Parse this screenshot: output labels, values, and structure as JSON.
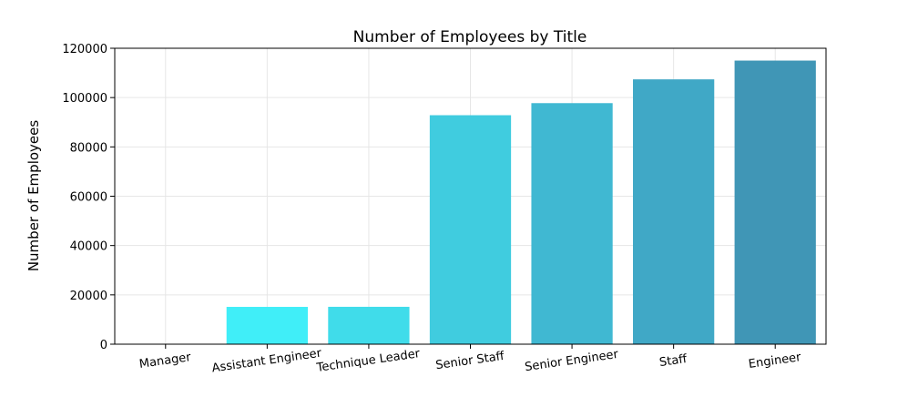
{
  "chart_data": {
    "type": "bar",
    "title": "Number of Employees by Title",
    "xlabel": "",
    "ylabel": "Number of Employees",
    "categories": [
      "Manager",
      "Assistant Engineer",
      "Technique Leader",
      "Senior Staff",
      "Senior Engineer",
      "Staff",
      "Engineer"
    ],
    "values": [
      24,
      15128,
      15159,
      92853,
      97750,
      107391,
      115003
    ],
    "ylim": [
      0,
      120000
    ],
    "yticks": [
      0,
      20000,
      40000,
      60000,
      80000,
      100000,
      120000
    ],
    "grid": true,
    "legend": "none",
    "colors": [
      "#40ffff",
      "#40eef8",
      "#40dcea",
      "#40ccdf",
      "#40b8d2",
      "#40a8c6",
      "#4096b6"
    ]
  }
}
